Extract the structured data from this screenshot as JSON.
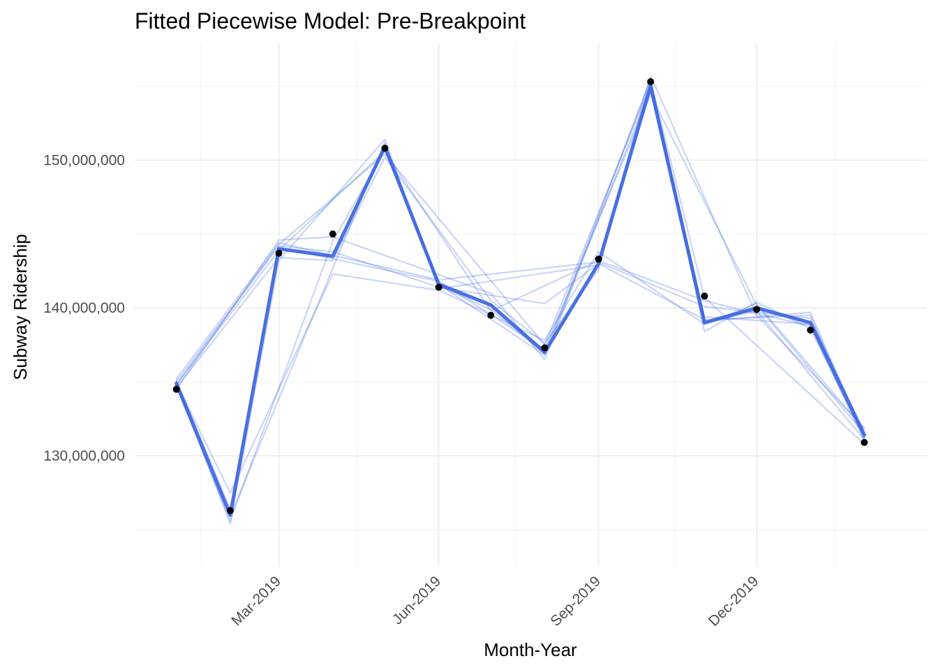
{
  "chart_data": {
    "type": "line",
    "title": "Fitted Piecewise Model: Pre-Breakpoint",
    "xlabel": "Month-Year",
    "ylabel": "Subway Ridership",
    "x_tick_labels": [
      "Mar-2019",
      "Jun-2019",
      "Sep-2019",
      "Dec-2019"
    ],
    "x_tick_dates": [
      "2019-03-01",
      "2019-06-01",
      "2019-09-01",
      "2019-12-01"
    ],
    "x_minor_dates": [
      "2019-01-15",
      "2019-04-15",
      "2019-07-15",
      "2019-10-15",
      "2020-01-15"
    ],
    "xlim": [
      "2018-12-08",
      "2020-03-08"
    ],
    "y_tick_labels": [
      "130,000,000",
      "140,000,000",
      "150,000,000"
    ],
    "y_ticks": [
      130000000,
      140000000,
      150000000
    ],
    "ylim": [
      122500000,
      157900000
    ],
    "grid": true,
    "legend": "none",
    "line_color": "#4169e1",
    "point_color": "#000000",
    "series": [
      {
        "kind": "observed",
        "x": [
          "2019-01-01",
          "2019-02-01",
          "2019-03-01",
          "2019-04-01",
          "2019-05-01",
          "2019-06-01",
          "2019-07-01",
          "2019-08-01",
          "2019-09-01",
          "2019-10-01",
          "2019-11-01",
          "2019-12-01",
          "2020-01-01",
          "2020-02-01"
        ],
        "values": [
          134500000,
          126300000,
          143700000,
          145000000,
          150800000,
          141400000,
          139500000,
          137300000,
          143300000,
          155300000,
          140800000,
          139900000,
          138500000,
          130900000
        ]
      },
      {
        "kind": "fitted",
        "x": [
          "2019-01-01",
          "2019-02-01",
          "2019-03-01",
          "2019-04-01",
          "2019-05-01",
          "2019-06-01",
          "2019-07-01",
          "2019-08-01",
          "2019-09-01",
          "2019-10-01",
          "2019-11-01",
          "2019-12-01",
          "2020-01-01",
          "2020-02-01"
        ],
        "values": [
          134900000,
          126000000,
          144000000,
          143500000,
          150900000,
          141600000,
          140200000,
          137000000,
          143000000,
          155000000,
          139000000,
          140000000,
          139000000,
          131400000
        ]
      },
      {
        "kind": "fitted",
        "x": [
          "2019-01-01",
          "2019-03-01",
          "2019-04-01",
          "2019-06-01",
          "2019-08-01",
          "2019-09-01",
          "2019-11-01",
          "2020-01-01",
          "2020-02-01"
        ],
        "values": [
          135000000,
          144200000,
          143800000,
          141400000,
          140300000,
          143000000,
          139200000,
          139500000,
          131200000
        ]
      },
      {
        "kind": "fitted",
        "x": [
          "2019-01-01",
          "2019-02-01",
          "2019-04-01",
          "2019-05-01",
          "2019-06-01",
          "2019-08-01",
          "2019-10-01",
          "2019-11-01",
          "2019-12-01",
          "2020-02-01"
        ],
        "values": [
          134700000,
          125600000,
          144500000,
          150700000,
          141600000,
          136800000,
          154800000,
          139000000,
          139800000,
          131100000
        ]
      },
      {
        "kind": "fitted",
        "x": [
          "2019-01-01",
          "2019-03-01",
          "2019-05-01",
          "2019-07-01",
          "2019-09-01",
          "2019-11-01",
          "2019-12-01",
          "2020-01-01",
          "2020-02-01"
        ],
        "values": [
          134800000,
          143900000,
          150600000,
          139800000,
          143200000,
          140500000,
          139600000,
          138800000,
          131000000
        ]
      },
      {
        "kind": "fitted",
        "x": [
          "2019-01-01",
          "2019-02-01",
          "2019-03-01",
          "2019-06-01",
          "2019-08-01",
          "2019-10-01",
          "2019-12-01",
          "2020-02-01"
        ],
        "values": [
          135100000,
          126400000,
          144100000,
          141800000,
          137200000,
          154400000,
          140200000,
          131500000
        ]
      },
      {
        "kind": "fitted",
        "x": [
          "2019-01-01",
          "2019-03-01",
          "2019-04-01",
          "2019-05-01",
          "2019-07-01",
          "2019-08-01",
          "2019-09-01",
          "2019-10-01",
          "2019-11-01",
          "2020-01-01",
          "2020-02-01"
        ],
        "values": [
          134600000,
          143400000,
          143200000,
          150200000,
          140500000,
          137600000,
          142600000,
          155200000,
          139400000,
          138900000,
          131300000
        ]
      },
      {
        "kind": "fitted",
        "x": [
          "2019-01-01",
          "2019-02-01",
          "2019-04-01",
          "2019-06-01",
          "2019-08-01",
          "2019-09-01",
          "2019-11-01",
          "2019-12-01",
          "2020-02-01"
        ],
        "values": [
          134900000,
          127500000,
          142300000,
          141200000,
          137800000,
          143800000,
          138900000,
          140300000,
          131800000
        ]
      },
      {
        "kind": "fitted",
        "x": [
          "2019-01-01",
          "2019-03-01",
          "2019-06-01",
          "2019-09-01",
          "2019-11-01",
          "2020-01-01",
          "2020-02-01"
        ],
        "values": [
          135200000,
          144400000,
          141900000,
          143100000,
          140100000,
          139300000,
          131600000
        ]
      },
      {
        "kind": "fitted",
        "x": [
          "2019-01-01",
          "2019-02-01",
          "2019-05-01",
          "2019-06-01",
          "2019-07-01",
          "2019-08-01",
          "2019-10-01",
          "2019-11-01",
          "2020-02-01"
        ],
        "values": [
          134700000,
          125900000,
          151200000,
          141500000,
          139900000,
          136900000,
          155400000,
          140700000,
          130800000
        ]
      },
      {
        "kind": "fitted",
        "x": [
          "2019-01-01",
          "2019-03-01",
          "2019-04-01",
          "2019-07-01",
          "2019-08-01",
          "2019-10-01",
          "2019-11-01",
          "2019-12-01",
          "2020-01-01",
          "2020-02-01"
        ],
        "values": [
          134500000,
          144600000,
          144800000,
          141000000,
          136500000,
          155500000,
          138400000,
          140400000,
          138600000,
          131200000
        ]
      },
      {
        "kind": "fitted",
        "x": [
          "2019-01-01",
          "2019-02-01",
          "2019-03-01",
          "2019-05-01",
          "2019-06-01",
          "2019-09-01",
          "2019-10-01",
          "2019-12-01",
          "2020-02-01"
        ],
        "values": [
          135000000,
          125400000,
          143200000,
          151400000,
          141300000,
          142900000,
          155700000,
          139500000,
          131900000
        ]
      },
      {
        "kind": "fitted",
        "x": [
          "2019-01-01",
          "2019-03-01",
          "2019-05-01",
          "2019-08-01",
          "2019-10-01",
          "2019-11-01",
          "2020-01-01",
          "2020-02-01"
        ],
        "values": [
          134800000,
          144300000,
          150400000,
          137500000,
          155100000,
          139100000,
          139700000,
          131300000
        ]
      }
    ]
  }
}
